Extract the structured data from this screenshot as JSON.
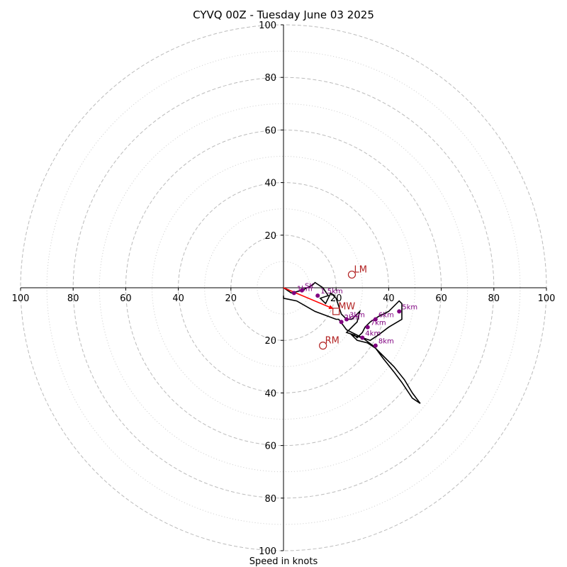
{
  "chart_data": {
    "type": "hodograph",
    "title": "CYVQ 00Z - Tuesday June 03 2025",
    "xlabel": "Speed in knots",
    "axis_range": [
      -100,
      100
    ],
    "tick_labels": [
      "100",
      "80",
      "60",
      "40",
      "20",
      "20",
      "40",
      "60",
      "80",
      "100"
    ],
    "tick_values": [
      -100,
      -80,
      -60,
      -40,
      -20,
      20,
      40,
      60,
      80,
      100
    ],
    "ring_major": [
      20,
      40,
      60,
      80,
      100
    ],
    "ring_minor": [
      10,
      30,
      50,
      70,
      90
    ],
    "grid": true,
    "hodograph_trace": [
      [
        0,
        0
      ],
      [
        3,
        -2
      ],
      [
        7,
        -1
      ],
      [
        11,
        1
      ],
      [
        12,
        2
      ],
      [
        15,
        0
      ],
      [
        17,
        -3
      ],
      [
        14,
        -4
      ],
      [
        16,
        -6
      ],
      [
        17,
        -4
      ],
      [
        18,
        -2
      ],
      [
        20,
        -4
      ],
      [
        21,
        -7
      ],
      [
        22,
        -10
      ],
      [
        24,
        -12
      ],
      [
        26,
        -12
      ],
      [
        29,
        -9
      ],
      [
        28,
        -13
      ],
      [
        26,
        -15
      ],
      [
        24,
        -17
      ],
      [
        27,
        -18
      ],
      [
        28,
        -19
      ],
      [
        30,
        -17
      ],
      [
        31,
        -15
      ],
      [
        33,
        -13
      ],
      [
        36,
        -11
      ],
      [
        40,
        -9
      ],
      [
        44,
        -5
      ],
      [
        45,
        -6
      ],
      [
        45,
        -12
      ],
      [
        40,
        -15
      ],
      [
        36,
        -18
      ],
      [
        33,
        -20
      ],
      [
        30,
        -19
      ],
      [
        26,
        -18
      ],
      [
        28,
        -20
      ],
      [
        32,
        -21
      ],
      [
        35,
        -23
      ],
      [
        38,
        -27
      ],
      [
        42,
        -32
      ],
      [
        45,
        -36
      ],
      [
        49,
        -42
      ],
      [
        52,
        -44
      ],
      [
        49,
        -40
      ],
      [
        46,
        -35
      ],
      [
        42,
        -30
      ],
      [
        38,
        -26
      ],
      [
        34,
        -22
      ],
      [
        30,
        -19
      ],
      [
        24,
        -16
      ],
      [
        21,
        -12
      ],
      [
        20,
        -12
      ],
      [
        12,
        -9
      ],
      [
        5,
        -5
      ],
      [
        0,
        -4
      ],
      [
        0,
        -3
      ]
    ],
    "height_markers": [
      {
        "label": "1km",
        "u": 4,
        "v": -2
      },
      {
        "label": "SK",
        "u": 7,
        "v": -1
      },
      {
        "label": "1.5km",
        "u": 13,
        "v": -3
      },
      {
        "label": "2km",
        "u": 22,
        "v": -13
      },
      {
        "label": "3km",
        "u": 24,
        "v": -12
      },
      {
        "label": "4km",
        "u": 30,
        "v": -19
      },
      {
        "label": "5km",
        "u": 44,
        "v": -9
      },
      {
        "label": "6km",
        "u": 35,
        "v": -12
      },
      {
        "label": "7km",
        "u": 32,
        "v": -15
      },
      {
        "label": "8km",
        "u": 35,
        "v": -22
      }
    ],
    "motion_markers": [
      {
        "label": "LM",
        "u": 26,
        "v": 5,
        "shape": "circle"
      },
      {
        "label": "RM",
        "u": 15,
        "v": -22,
        "shape": "circle"
      },
      {
        "label": "MW",
        "u": 20,
        "v": -9,
        "shape": "square"
      }
    ],
    "shear_vector": {
      "from": [
        0,
        0
      ],
      "to": [
        19,
        -8
      ]
    },
    "colors": {
      "trace": "#000000",
      "height_marker": "#800080",
      "motion": "#b22222",
      "shear": "#ff0000",
      "grid": "#bbbbbb"
    }
  }
}
